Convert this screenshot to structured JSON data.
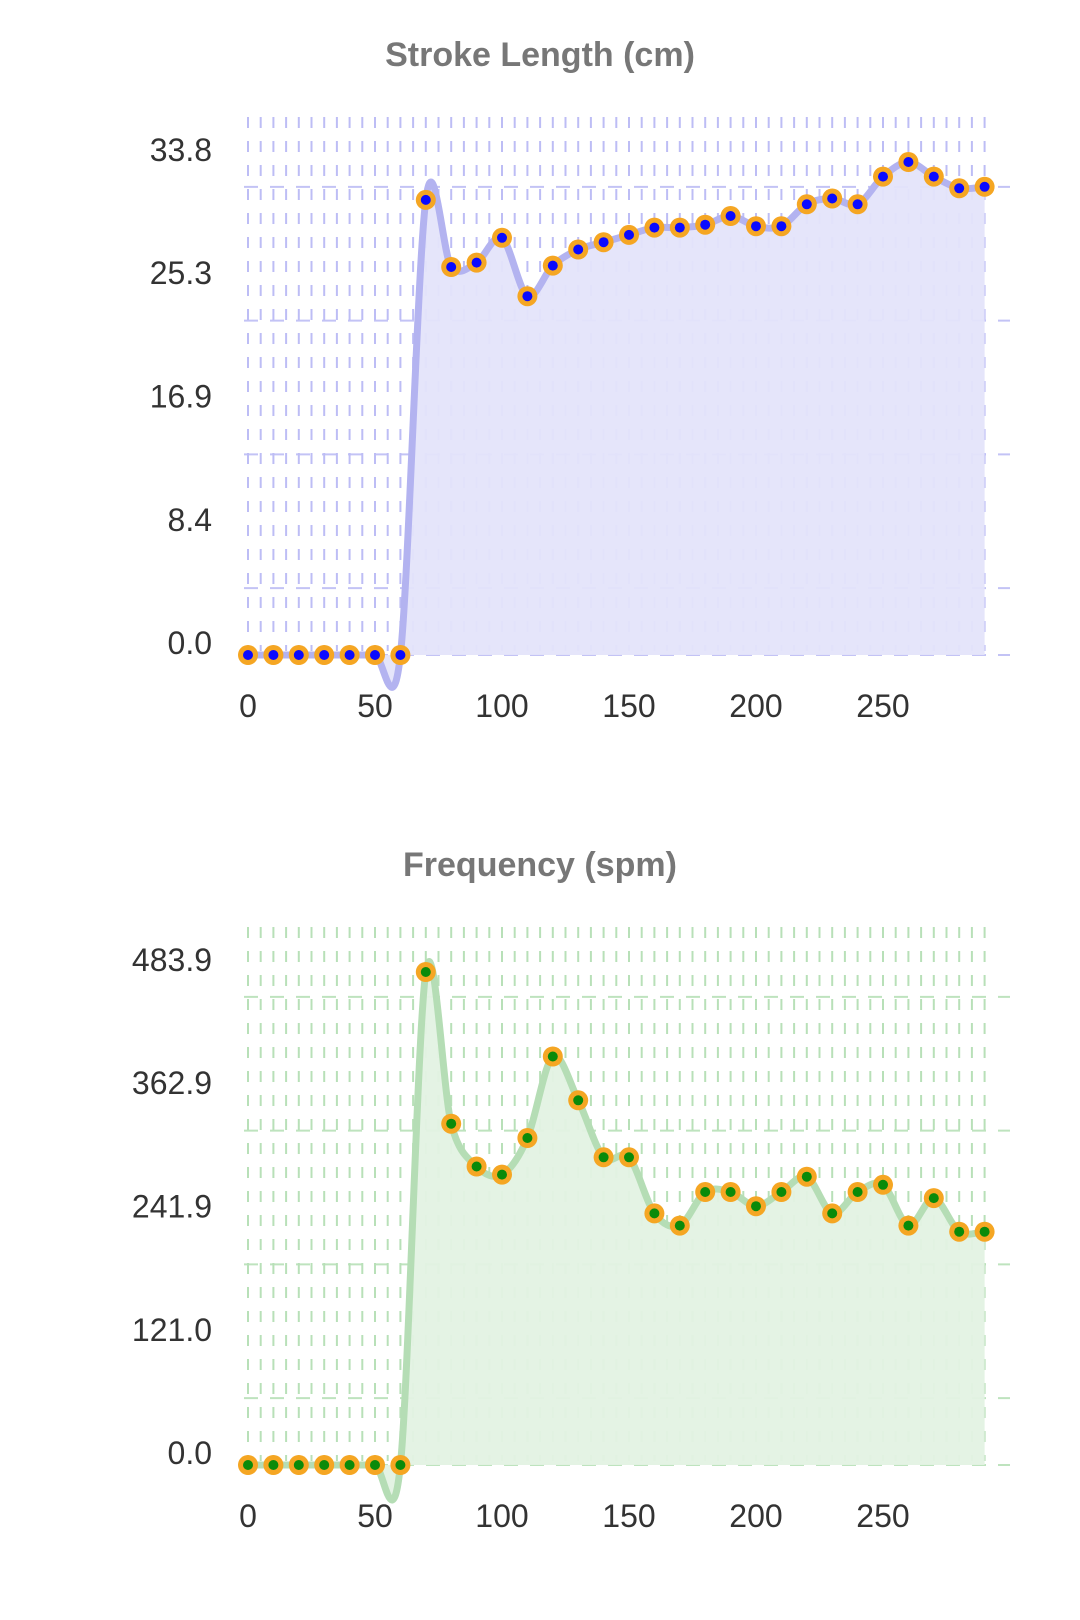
{
  "chart_data": [
    {
      "type": "area",
      "title": "Stroke Length (cm)",
      "xlabel": "",
      "ylabel": "",
      "x": [
        0,
        10,
        20,
        30,
        40,
        50,
        60,
        70,
        80,
        90,
        100,
        110,
        120,
        130,
        140,
        150,
        160,
        170,
        180,
        190,
        200,
        210,
        220,
        230,
        240,
        250,
        260,
        270,
        280,
        290
      ],
      "values": [
        0,
        0,
        0,
        0,
        0,
        0,
        0,
        31.2,
        26.6,
        26.9,
        28.6,
        24.6,
        26.7,
        27.8,
        28.3,
        28.8,
        29.3,
        29.3,
        29.5,
        30.1,
        29.4,
        29.4,
        30.9,
        31.3,
        30.9,
        32.8,
        33.8,
        32.8,
        32.0,
        32.1
      ],
      "y_ticks": [
        "0.0",
        "8.4",
        "16.9",
        "25.3",
        "33.8"
      ],
      "y_tick_values": [
        0,
        8.45,
        16.9,
        25.35,
        33.8
      ],
      "x_ticks": [
        "0",
        "50",
        "100",
        "150",
        "200",
        "250"
      ],
      "x_tick_values": [
        0,
        50,
        100,
        150,
        200,
        250
      ],
      "xlim": [
        0,
        300
      ],
      "ylim": [
        0,
        33.8
      ],
      "grid": true,
      "colors": {
        "line": "#B3B3F0",
        "fill": "#E4E4FA",
        "marker_outer": "#F5A623",
        "marker_inner": "#0A0AFF",
        "grid": "#BDBDF5"
      }
    },
    {
      "type": "area",
      "title": "Frequency (spm)",
      "xlabel": "",
      "ylabel": "",
      "x": [
        0,
        10,
        20,
        30,
        40,
        50,
        60,
        70,
        80,
        90,
        100,
        110,
        120,
        130,
        140,
        150,
        160,
        170,
        180,
        190,
        200,
        210,
        220,
        230,
        240,
        250,
        260,
        270,
        280,
        290
      ],
      "values": [
        0,
        0,
        0,
        0,
        0,
        0,
        0,
        483.9,
        335,
        293,
        285,
        321,
        401,
        358,
        302,
        302,
        247,
        235,
        268,
        268,
        254,
        268,
        283,
        247,
        268,
        275,
        235,
        262,
        229,
        229
      ],
      "y_ticks": [
        "0.0",
        "121.0",
        "241.9",
        "362.9",
        "483.9"
      ],
      "y_tick_values": [
        0,
        120.975,
        241.95,
        362.925,
        483.9
      ],
      "x_ticks": [
        "0",
        "50",
        "100",
        "150",
        "200",
        "250"
      ],
      "x_tick_values": [
        0,
        50,
        100,
        150,
        200,
        250
      ],
      "xlim": [
        0,
        300
      ],
      "ylim": [
        0,
        483.9
      ],
      "grid": true,
      "colors": {
        "line": "#B5DDB5",
        "fill": "#E3F2E3",
        "marker_outer": "#F5A623",
        "marker_inner": "#0A8A0A",
        "grid": "#B8E0B8"
      }
    }
  ]
}
